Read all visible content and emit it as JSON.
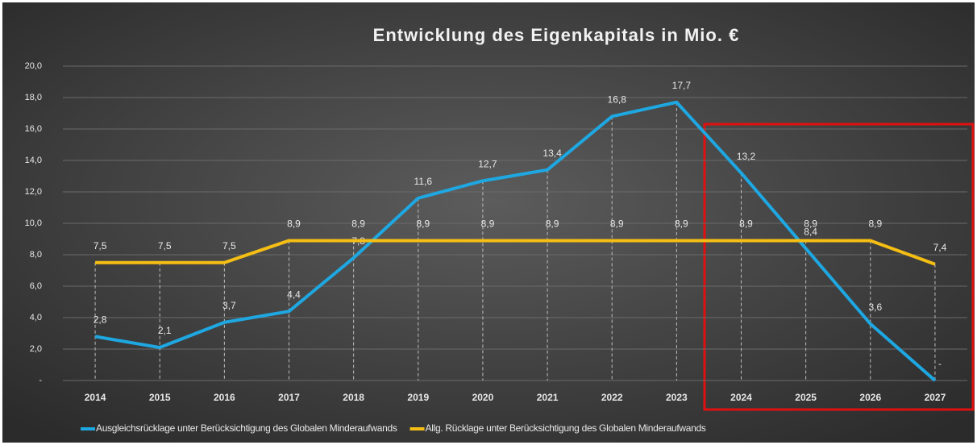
{
  "chart_data": {
    "type": "line",
    "title": "Entwicklung des Eigenkapitals in Mio. €",
    "categories": [
      "2014",
      "2015",
      "2016",
      "2017",
      "2018",
      "2019",
      "2020",
      "2021",
      "2022",
      "2023",
      "2024",
      "2025",
      "2026",
      "2027"
    ],
    "series": [
      {
        "name": "Ausgleichsrücklage unter  Berücksichtigung des Globalen Minderaufwands",
        "color": "#1ea7e1",
        "values": [
          2.8,
          2.1,
          3.7,
          4.4,
          7.8,
          11.6,
          12.7,
          13.4,
          16.8,
          17.7,
          13.2,
          8.4,
          3.6,
          0
        ],
        "value_labels": [
          "2,8",
          "2,1",
          "3,7",
          "4,4",
          "7,8",
          "11,6",
          "12,7",
          "13,4",
          "16,8",
          "17,7",
          "13,2",
          "8,4",
          "3,6",
          "-"
        ]
      },
      {
        "name": "Allg. Rücklage unter Berücksichtigung des Globalen Minderaufwands",
        "color": "#f5be14",
        "values": [
          7.5,
          7.5,
          7.5,
          8.9,
          8.9,
          8.9,
          8.9,
          8.9,
          8.9,
          8.9,
          8.9,
          8.9,
          8.9,
          7.4
        ],
        "value_labels": [
          "7,5",
          "7,5",
          "7,5",
          "8,9",
          "8,9",
          "8,9",
          "8,9",
          "8,9",
          "8,9",
          "8,9",
          "8,9",
          "8,9",
          "8,9",
          "7,4"
        ]
      }
    ],
    "ylim": [
      0,
      20
    ],
    "yticks": [
      {
        "value": 0,
        "label": "-"
      },
      {
        "value": 2,
        "label": "2,0"
      },
      {
        "value": 4,
        "label": "4,0"
      },
      {
        "value": 6,
        "label": "6,0"
      },
      {
        "value": 8,
        "label": "8,0"
      },
      {
        "value": 10,
        "label": "10,0"
      },
      {
        "value": 12,
        "label": "12,0"
      },
      {
        "value": 14,
        "label": "14,0"
      },
      {
        "value": 16,
        "label": "16,0"
      },
      {
        "value": 18,
        "label": "18,0"
      },
      {
        "value": 20,
        "label": "20,0"
      }
    ],
    "grid": true,
    "legend": "bottom"
  }
}
